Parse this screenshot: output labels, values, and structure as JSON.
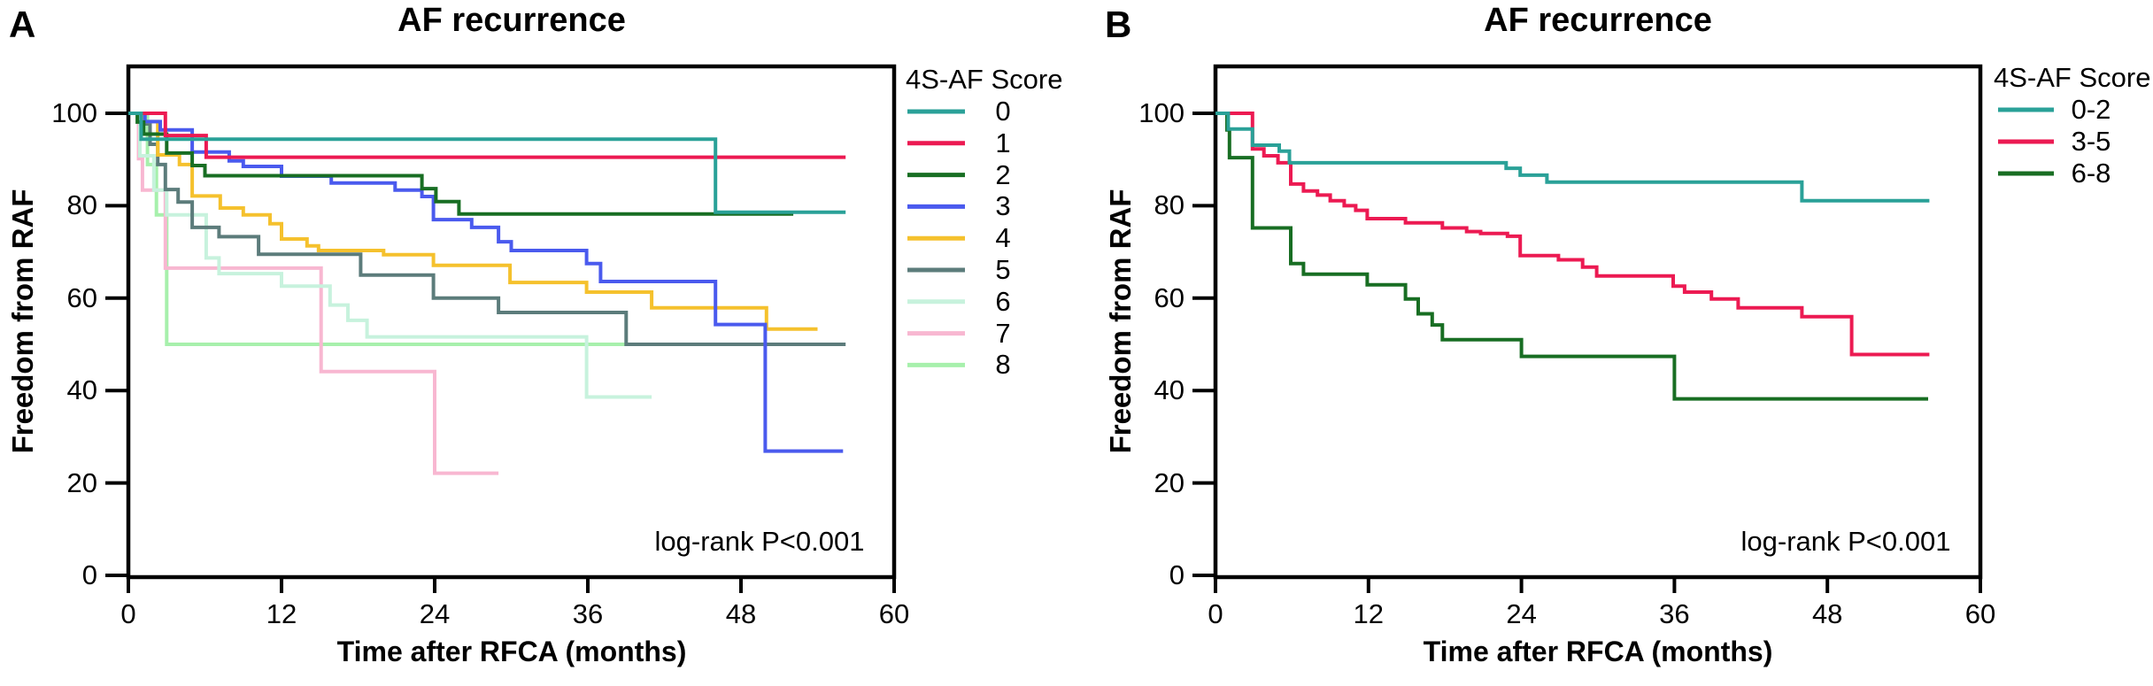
{
  "figure_title": "AF recurrence",
  "chart_data": [
    {
      "type": "line",
      "subtype": "kaplan-meier-step",
      "panel": "A",
      "title": "AF recurrence",
      "xlabel": "Time after RFCA (months)",
      "ylabel": "Freedom from RAF",
      "annotation": "log-rank P<0.001",
      "legend_title": "4S-AF Score",
      "legend_position": "right",
      "xlim": [
        0,
        60
      ],
      "ylim": [
        0,
        110
      ],
      "xticks": [
        0,
        12,
        24,
        36,
        48,
        60
      ],
      "yticks": [
        0,
        20,
        40,
        60,
        80,
        100
      ],
      "grid": false,
      "axis_color": "#000000",
      "series": [
        {
          "name": "0",
          "color": "#2AA198",
          "end": 56.2,
          "points": [
            [
              0,
              100
            ],
            [
              1.0,
              94.4
            ],
            [
              46.0,
              78.6
            ]
          ]
        },
        {
          "name": "1",
          "color": "#EC1A52",
          "end": 56.2,
          "points": [
            [
              0,
              100
            ],
            [
              2.9,
              95.2
            ],
            [
              6.1,
              90.5
            ]
          ]
        },
        {
          "name": "2",
          "color": "#186E23",
          "end": 52.1,
          "points": [
            [
              0,
              100
            ],
            [
              0.7,
              98.1
            ],
            [
              1.2,
              95.5
            ],
            [
              3.0,
              91.4
            ],
            [
              5.0,
              88.7
            ],
            [
              6.0,
              86.5
            ],
            [
              23.0,
              83.7
            ],
            [
              24.1,
              80.9
            ],
            [
              25.9,
              78.2
            ]
          ]
        },
        {
          "name": "3",
          "color": "#4A5AEE",
          "end": 56.0,
          "points": [
            [
              0,
              100
            ],
            [
              1.3,
              98.2
            ],
            [
              2.5,
              96.4
            ],
            [
              5.0,
              91.6
            ],
            [
              7.9,
              89.7
            ],
            [
              9.0,
              88.5
            ],
            [
              12.0,
              86.4
            ],
            [
              15.9,
              84.9
            ],
            [
              20.9,
              83.4
            ],
            [
              23.0,
              82.0
            ],
            [
              23.9,
              77.0
            ],
            [
              26.9,
              75.3
            ],
            [
              29.0,
              72.2
            ],
            [
              30.0,
              70.3
            ],
            [
              35.9,
              67.5
            ],
            [
              37.0,
              63.6
            ],
            [
              46.0,
              54.3
            ],
            [
              49.9,
              26.9
            ]
          ]
        },
        {
          "name": "4",
          "color": "#F5C12D",
          "end": 54.0,
          "points": [
            [
              0,
              100
            ],
            [
              1.2,
              98.2
            ],
            [
              2.3,
              91.0
            ],
            [
              4.0,
              88.9
            ],
            [
              5.0,
              82.1
            ],
            [
              7.2,
              79.5
            ],
            [
              9.0,
              78.0
            ],
            [
              11.1,
              76.1
            ],
            [
              12.0,
              72.8
            ],
            [
              14.0,
              71.3
            ],
            [
              14.9,
              70.3
            ],
            [
              20.0,
              69.4
            ],
            [
              23.9,
              67.1
            ],
            [
              29.9,
              63.4
            ],
            [
              35.9,
              61.3
            ],
            [
              41.0,
              57.9
            ],
            [
              50.0,
              53.3
            ]
          ]
        },
        {
          "name": "5",
          "color": "#5C7C7B",
          "end": 56.2,
          "points": [
            [
              0,
              100
            ],
            [
              1.0,
              97.7
            ],
            [
              1.7,
              93.3
            ],
            [
              2.3,
              88.9
            ],
            [
              2.9,
              83.5
            ],
            [
              3.9,
              80.8
            ],
            [
              5.0,
              75.3
            ],
            [
              7.1,
              73.3
            ],
            [
              10.2,
              69.5
            ],
            [
              18.2,
              65.0
            ],
            [
              23.9,
              60.0
            ],
            [
              29.0,
              56.9
            ],
            [
              39.0,
              50.0
            ]
          ]
        },
        {
          "name": "6",
          "color": "#C7F2DD",
          "end": 41.0,
          "points": [
            [
              0,
              100
            ],
            [
              0.9,
              90.8
            ],
            [
              2.0,
              83.4
            ],
            [
              3.0,
              78.0
            ],
            [
              6.1,
              68.7
            ],
            [
              7.1,
              65.3
            ],
            [
              12.0,
              62.6
            ],
            [
              15.8,
              58.5
            ],
            [
              17.2,
              55.2
            ],
            [
              18.7,
              51.6
            ],
            [
              35.9,
              38.6
            ]
          ]
        },
        {
          "name": "7",
          "color": "#F8B7D1",
          "end": 29.0,
          "points": [
            [
              0,
              100
            ],
            [
              0.8,
              90.2
            ],
            [
              1.1,
              83.4
            ],
            [
              2.9,
              66.5
            ],
            [
              15.1,
              44.1
            ],
            [
              24.0,
              22.1
            ]
          ]
        },
        {
          "name": "8",
          "color": "#A7F0AC",
          "end": 39.0,
          "points": [
            [
              0,
              100
            ],
            [
              1.5,
              88.9
            ],
            [
              2.2,
              78.0
            ],
            [
              3.0,
              50.0
            ]
          ]
        }
      ]
    },
    {
      "type": "line",
      "subtype": "kaplan-meier-step",
      "panel": "B",
      "title": "AF recurrence",
      "xlabel": "Time after  RFCA (months)",
      "ylabel": "Freedom from RAF",
      "annotation": "log-rank P<0.001",
      "legend_title": "4S-AF Score",
      "legend_position": "right",
      "xlim": [
        0,
        60
      ],
      "ylim": [
        0,
        110
      ],
      "xticks": [
        0,
        12,
        24,
        36,
        48,
        60
      ],
      "yticks": [
        0,
        20,
        40,
        60,
        80,
        100
      ],
      "grid": false,
      "axis_color": "#000000",
      "series": [
        {
          "name": "0-2",
          "color": "#2AA198",
          "end": 56.0,
          "points": [
            [
              0,
              100
            ],
            [
              1.0,
              96.6
            ],
            [
              2.9,
              93.1
            ],
            [
              5.0,
              91.8
            ],
            [
              5.8,
              89.3
            ],
            [
              22.8,
              88.1
            ],
            [
              23.9,
              86.6
            ],
            [
              26.0,
              85.1
            ],
            [
              46.0,
              81.1
            ]
          ]
        },
        {
          "name": "3-5",
          "color": "#EC1A52",
          "end": 56.0,
          "points": [
            [
              0,
              100
            ],
            [
              2.9,
              92.3
            ],
            [
              3.8,
              90.8
            ],
            [
              4.9,
              89.3
            ],
            [
              5.9,
              84.7
            ],
            [
              6.9,
              83.2
            ],
            [
              8.0,
              82.3
            ],
            [
              9.0,
              81.1
            ],
            [
              10.1,
              80.0
            ],
            [
              11.0,
              79.0
            ],
            [
              11.9,
              77.2
            ],
            [
              14.9,
              76.3
            ],
            [
              17.8,
              75.2
            ],
            [
              19.7,
              74.4
            ],
            [
              20.8,
              74.0
            ],
            [
              22.9,
              73.4
            ],
            [
              23.9,
              69.2
            ],
            [
              26.9,
              68.3
            ],
            [
              28.8,
              66.7
            ],
            [
              29.9,
              64.8
            ],
            [
              35.9,
              62.6
            ],
            [
              36.8,
              61.3
            ],
            [
              38.9,
              59.8
            ],
            [
              41.0,
              57.9
            ],
            [
              46.0,
              56.0
            ],
            [
              49.9,
              47.8
            ]
          ]
        },
        {
          "name": "6-8",
          "color": "#186E23",
          "end": 55.9,
          "points": [
            [
              0,
              100
            ],
            [
              0.9,
              96.4
            ],
            [
              1.1,
              90.4
            ],
            [
              2.9,
              75.2
            ],
            [
              5.9,
              67.5
            ],
            [
              6.9,
              65.2
            ],
            [
              11.9,
              62.9
            ],
            [
              14.9,
              59.8
            ],
            [
              15.9,
              56.6
            ],
            [
              17.0,
              54.2
            ],
            [
              17.8,
              51.0
            ],
            [
              24.0,
              47.4
            ],
            [
              36.0,
              38.2
            ]
          ]
        }
      ]
    }
  ]
}
